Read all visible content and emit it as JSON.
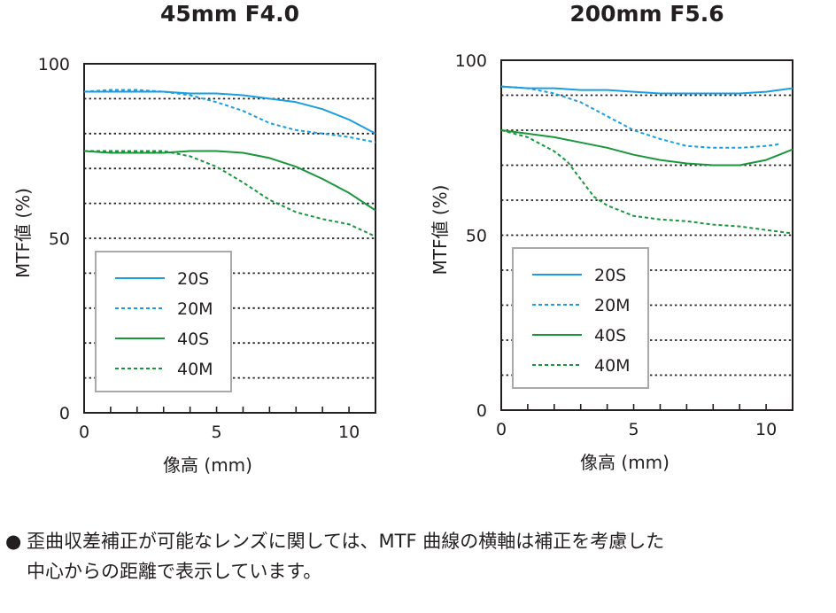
{
  "chart_data": [
    {
      "type": "line",
      "title": "45mm F4.0",
      "xlabel": "像高 (mm)",
      "ylabel": "MTF値 (%)",
      "xlim": [
        0,
        11
      ],
      "ylim": [
        0,
        100
      ],
      "x_ticks": [
        "0",
        "5",
        "10"
      ],
      "y_ticks": [
        "0",
        "50",
        "100"
      ],
      "grid": "horizontal dotted every 10",
      "legend": "bottom-left",
      "series": [
        {
          "name": "20S",
          "color": "#1a9ee0",
          "dash": "solid",
          "x": [
            0,
            1,
            2,
            3,
            4,
            5,
            6,
            7,
            8,
            9,
            10,
            11
          ],
          "y": [
            92,
            92,
            92,
            92,
            91.5,
            91.5,
            91,
            90,
            89,
            87,
            84,
            80
          ]
        },
        {
          "name": "20M",
          "color": "#1a9ee0",
          "dash": "dashed",
          "x": [
            0,
            1,
            2,
            3,
            4,
            5,
            6,
            7,
            8,
            9,
            10,
            11
          ],
          "y": [
            92,
            92.5,
            92.5,
            92,
            91,
            89,
            86.5,
            83,
            81,
            80,
            79,
            77.5
          ]
        },
        {
          "name": "40S",
          "color": "#19963c",
          "dash": "solid",
          "x": [
            0,
            1,
            2,
            3,
            4,
            5,
            6,
            7,
            8,
            9,
            10,
            11
          ],
          "y": [
            75,
            74.5,
            74.5,
            74.5,
            75,
            75,
            74.5,
            73,
            70.5,
            67,
            63,
            58
          ]
        },
        {
          "name": "40M",
          "color": "#19963c",
          "dash": "dashed",
          "x": [
            0,
            1,
            2,
            3,
            4,
            5,
            6,
            7,
            8,
            9,
            10,
            11
          ],
          "y": [
            75,
            75,
            75,
            75,
            73.5,
            70.5,
            66,
            61,
            57.5,
            55.5,
            54,
            50.5
          ]
        }
      ]
    },
    {
      "type": "line",
      "title": "200mm F5.6",
      "xlabel": "像高 (mm)",
      "ylabel": "MTF値 (%)",
      "xlim": [
        0,
        11
      ],
      "ylim": [
        0,
        100
      ],
      "x_ticks": [
        "0",
        "5",
        "10"
      ],
      "y_ticks": [
        "0",
        "50",
        "100"
      ],
      "grid": "horizontal dotted every 10",
      "legend": "bottom-left",
      "series": [
        {
          "name": "20S",
          "color": "#1a9ee0",
          "dash": "solid",
          "x": [
            0,
            1,
            2,
            3,
            4,
            5,
            6,
            7,
            8,
            9,
            10,
            11
          ],
          "y": [
            92.5,
            92,
            92,
            91.5,
            91.5,
            91,
            90.5,
            90.5,
            90.5,
            90.5,
            91,
            92
          ]
        },
        {
          "name": "20M",
          "color": "#1a9ee0",
          "dash": "dashed",
          "x": [
            0,
            1,
            2,
            3,
            4,
            5,
            6,
            7,
            8,
            9,
            10,
            10.5
          ],
          "y": [
            92.5,
            92,
            90.5,
            88,
            84,
            80,
            77.5,
            75.5,
            75,
            75,
            75.5,
            76
          ]
        },
        {
          "name": "40S",
          "color": "#19963c",
          "dash": "solid",
          "x": [
            0,
            1,
            2,
            3,
            4,
            5,
            6,
            7,
            8,
            9,
            10,
            11
          ],
          "y": [
            80,
            79,
            78,
            76.5,
            75,
            73,
            71.5,
            70.5,
            70,
            70,
            71.5,
            74.5
          ]
        },
        {
          "name": "40M",
          "color": "#19963c",
          "dash": "dashed",
          "x": [
            0,
            1,
            2,
            2.5,
            3,
            3.5,
            4,
            5,
            6,
            7,
            8,
            9,
            10,
            11
          ],
          "y": [
            80,
            78,
            74,
            71,
            66,
            61,
            58.5,
            55.5,
            54.5,
            54,
            53,
            52.5,
            51.5,
            50.5
          ]
        }
      ]
    }
  ],
  "footnote": {
    "bullet": "●",
    "line1": "歪曲収差補正が可能なレンズに関しては、MTF 曲線の横軸は補正を考慮した",
    "line2": "中心からの距離で表示しています。"
  }
}
